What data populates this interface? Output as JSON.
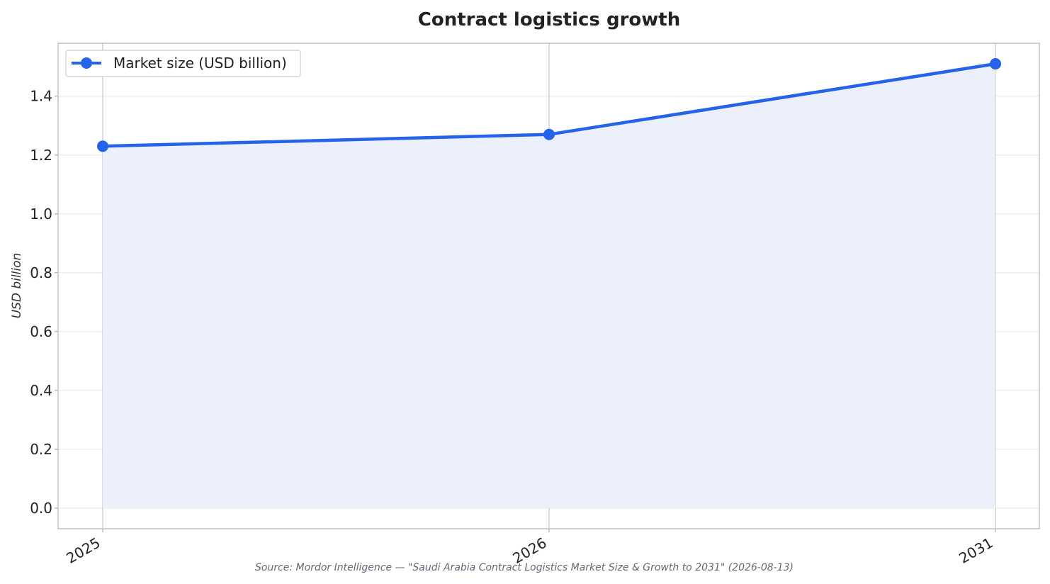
{
  "chart_data": {
    "type": "line",
    "title": "Contract logistics growth",
    "xlabel": "",
    "ylabel": "USD billion",
    "categories": [
      "2025",
      "2026",
      "2031"
    ],
    "x": [
      2025,
      2026,
      2031
    ],
    "series": [
      {
        "name": "Market size (USD billion)",
        "values": [
          1.23,
          1.27,
          1.51
        ],
        "color": "#2563eb",
        "marker": "circle",
        "fill": "area"
      }
    ],
    "ylim": [
      -0.07,
      1.58
    ],
    "yticks": [
      0.0,
      0.2,
      0.4,
      0.6,
      0.8,
      1.0,
      1.2,
      1.4
    ],
    "ytick_labels": [
      "0.0",
      "0.2",
      "0.4",
      "0.6",
      "0.8",
      "1.0",
      "1.2",
      "1.4"
    ],
    "x_spacing": "categorical",
    "grid": true,
    "legend_position": "top-left",
    "source": "Source: Mordor Intelligence — \"Saudi Arabia Contract Logistics Market Size & Growth to 2031\" (2026-08-13)",
    "colors": {
      "line": "#2563eb",
      "area_fill": "#ebf0fb",
      "grid": "#e6e6e6",
      "xgrid": "#c4c4c8",
      "frame": "#c0c0c4"
    }
  }
}
